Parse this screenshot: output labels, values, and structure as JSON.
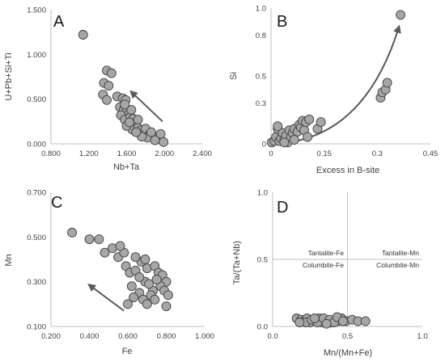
{
  "colors": {
    "marker_fill": "#a6a6a6",
    "marker_edge": "#404040",
    "arrow": "#595959",
    "axis": "#bfbfbf",
    "text": "#404040"
  },
  "chart_data": [
    {
      "panel": "A",
      "type": "scatter",
      "xlabel": "Nb+Ta",
      "ylabel": "U+Pb+Si+Ti",
      "xlim": [
        0.8,
        2.4
      ],
      "ylim": [
        0.0,
        1.5
      ],
      "x_ticks": [
        "0.800",
        "1.200",
        "1.600",
        "2.000",
        "2.400"
      ],
      "y_ticks": [
        "0.000",
        "0.500",
        "1.000",
        "1.500"
      ],
      "arrow": {
        "from": [
          1.98,
          0.25
        ],
        "to": [
          1.65,
          0.58
        ],
        "curved": false
      },
      "points": [
        [
          1.14,
          1.22
        ],
        [
          1.39,
          0.82
        ],
        [
          1.44,
          0.79
        ],
        [
          1.36,
          0.68
        ],
        [
          1.41,
          0.65
        ],
        [
          1.35,
          0.55
        ],
        [
          1.39,
          0.49
        ],
        [
          1.5,
          0.53
        ],
        [
          1.56,
          0.51
        ],
        [
          1.59,
          0.49
        ],
        [
          1.53,
          0.41
        ],
        [
          1.57,
          0.38
        ],
        [
          1.6,
          0.36
        ],
        [
          1.62,
          0.33
        ],
        [
          1.54,
          0.32
        ],
        [
          1.58,
          0.27
        ],
        [
          1.64,
          0.3
        ],
        [
          1.67,
          0.28
        ],
        [
          1.62,
          0.22
        ],
        [
          1.68,
          0.2
        ],
        [
          1.66,
          0.16
        ],
        [
          1.72,
          0.18
        ],
        [
          1.75,
          0.15
        ],
        [
          1.78,
          0.12
        ],
        [
          1.8,
          0.17
        ],
        [
          1.84,
          0.1
        ],
        [
          1.88,
          0.08
        ],
        [
          1.92,
          0.06
        ],
        [
          1.96,
          0.11
        ],
        [
          1.82,
          0.07
        ],
        [
          1.76,
          0.08
        ],
        [
          1.7,
          0.13
        ],
        [
          1.6,
          0.2
        ],
        [
          1.65,
          0.38
        ],
        [
          1.58,
          0.44
        ],
        [
          1.63,
          0.24
        ],
        [
          1.86,
          0.13
        ],
        [
          1.9,
          0.04
        ],
        [
          1.99,
          0.02
        ],
        [
          1.72,
          0.27
        ]
      ]
    },
    {
      "panel": "B",
      "type": "scatter",
      "xlabel": "Excess in B-site",
      "ylabel": "Si",
      "xlim": [
        0.0,
        0.48
      ],
      "ylim": [
        0.0,
        1.0
      ],
      "x_ticks": [
        "0",
        "0.15",
        "0.3",
        "0.45"
      ],
      "y_ticks": [
        "0",
        "0.3",
        "0.5",
        "0.8",
        "1.0"
      ],
      "arrow": {
        "from": [
          0.0,
          0.0
        ],
        "to": [
          0.385,
          0.86
        ],
        "curved": true
      },
      "points": [
        [
          0.002,
          0.01
        ],
        [
          0.01,
          0.02
        ],
        [
          0.015,
          0.05
        ],
        [
          0.02,
          0.11
        ],
        [
          0.025,
          0.02
        ],
        [
          0.03,
          0.04
        ],
        [
          0.035,
          0.08
        ],
        [
          0.04,
          0.03
        ],
        [
          0.045,
          0.06
        ],
        [
          0.05,
          0.01
        ],
        [
          0.055,
          0.1
        ],
        [
          0.06,
          0.05
        ],
        [
          0.065,
          0.08
        ],
        [
          0.07,
          0.11
        ],
        [
          0.08,
          0.09
        ],
        [
          0.085,
          0.14
        ],
        [
          0.09,
          0.12
        ],
        [
          0.095,
          0.17
        ],
        [
          0.1,
          0.1
        ],
        [
          0.105,
          0.16
        ],
        [
          0.11,
          0.05
        ],
        [
          0.115,
          0.18
        ],
        [
          0.14,
          0.11
        ],
        [
          0.15,
          0.16
        ],
        [
          0.04,
          0.01
        ],
        [
          0.07,
          0.03
        ],
        [
          0.33,
          0.34
        ],
        [
          0.335,
          0.38
        ],
        [
          0.345,
          0.4
        ],
        [
          0.35,
          0.45
        ],
        [
          0.39,
          0.95
        ],
        [
          0.02,
          0.13
        ]
      ]
    },
    {
      "panel": "C",
      "type": "scatter",
      "xlabel": "Fe",
      "ylabel": "Mn",
      "xlim": [
        0.2,
        1.0
      ],
      "ylim": [
        0.1,
        0.7
      ],
      "x_ticks": [
        "0.200",
        "0.400",
        "0.600",
        "0.800",
        "1.000"
      ],
      "y_ticks": [
        "0.100",
        "0.300",
        "0.500",
        "0.700"
      ],
      "arrow": {
        "from": [
          0.58,
          0.17
        ],
        "to": [
          0.4,
          0.285
        ],
        "curved": false
      },
      "points": [
        [
          0.31,
          0.52
        ],
        [
          0.4,
          0.49
        ],
        [
          0.45,
          0.49
        ],
        [
          0.48,
          0.43
        ],
        [
          0.52,
          0.45
        ],
        [
          0.55,
          0.41
        ],
        [
          0.58,
          0.43
        ],
        [
          0.59,
          0.37
        ],
        [
          0.61,
          0.34
        ],
        [
          0.64,
          0.35
        ],
        [
          0.67,
          0.39
        ],
        [
          0.7,
          0.36
        ],
        [
          0.74,
          0.37
        ],
        [
          0.76,
          0.34
        ],
        [
          0.78,
          0.33
        ],
        [
          0.8,
          0.3
        ],
        [
          0.62,
          0.28
        ],
        [
          0.66,
          0.25
        ],
        [
          0.68,
          0.22
        ],
        [
          0.7,
          0.2
        ],
        [
          0.73,
          0.26
        ],
        [
          0.77,
          0.28
        ],
        [
          0.8,
          0.19
        ],
        [
          0.63,
          0.23
        ],
        [
          0.69,
          0.3
        ],
        [
          0.72,
          0.24
        ],
        [
          0.75,
          0.31
        ],
        [
          0.79,
          0.26
        ],
        [
          0.66,
          0.32
        ],
        [
          0.71,
          0.29
        ],
        [
          0.6,
          0.2
        ],
        [
          0.74,
          0.22
        ],
        [
          0.64,
          0.41
        ],
        [
          0.56,
          0.46
        ],
        [
          0.69,
          0.4
        ],
        [
          0.81,
          0.24
        ]
      ]
    },
    {
      "panel": "D",
      "type": "scatter",
      "xlabel": "Mn/(Mn+Fe)",
      "ylabel": "Ta/(Ta+Nb)",
      "xlim": [
        0.0,
        1.0
      ],
      "ylim": [
        0.0,
        1.0
      ],
      "x_ticks": [
        "0.0",
        "0.5",
        "1.0"
      ],
      "y_ticks": [
        "0.0",
        "0.5",
        "1.0"
      ],
      "fields": [
        "Tantalite-Fe",
        "Columbite-Fe",
        "Tantalite-Mn",
        "Columbite-Mn"
      ],
      "divider_x": 0.5,
      "divider_y": 0.5,
      "points": [
        [
          0.16,
          0.06
        ],
        [
          0.19,
          0.05
        ],
        [
          0.21,
          0.04
        ],
        [
          0.23,
          0.06
        ],
        [
          0.25,
          0.03
        ],
        [
          0.27,
          0.05
        ],
        [
          0.29,
          0.04
        ],
        [
          0.31,
          0.06
        ],
        [
          0.33,
          0.03
        ],
        [
          0.35,
          0.05
        ],
        [
          0.37,
          0.04
        ],
        [
          0.39,
          0.03
        ],
        [
          0.42,
          0.05
        ],
        [
          0.44,
          0.04
        ],
        [
          0.46,
          0.06
        ],
        [
          0.49,
          0.04
        ],
        [
          0.53,
          0.05
        ],
        [
          0.57,
          0.04
        ],
        [
          0.62,
          0.04
        ],
        [
          0.22,
          0.03
        ],
        [
          0.26,
          0.05
        ],
        [
          0.3,
          0.03
        ],
        [
          0.34,
          0.06
        ],
        [
          0.38,
          0.05
        ],
        [
          0.41,
          0.03
        ],
        [
          0.43,
          0.07
        ],
        [
          0.47,
          0.04
        ],
        [
          0.28,
          0.06
        ],
        [
          0.36,
          0.02
        ],
        [
          0.18,
          0.03
        ]
      ]
    }
  ]
}
